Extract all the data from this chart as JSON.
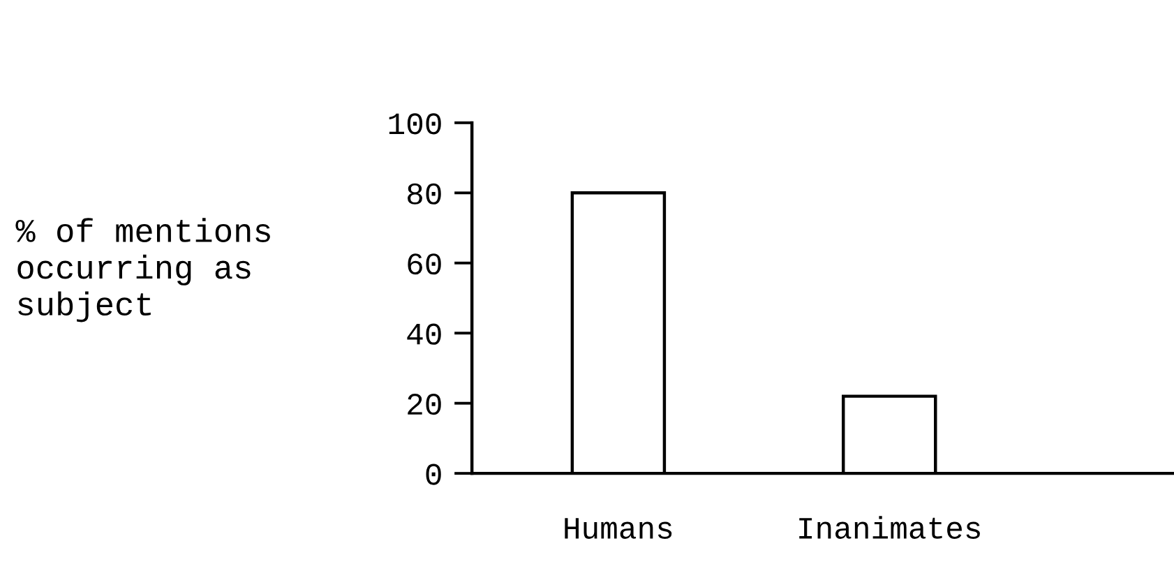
{
  "chart_data": {
    "type": "bar",
    "ylabel": "% of mentions\noccurring as\nsubject",
    "categories": [
      "Humans",
      "Inanimates"
    ],
    "values": [
      80,
      22
    ],
    "color": "#ffffff",
    "ylim": [
      0,
      100
    ],
    "yticks": [
      0,
      20,
      40,
      60,
      80,
      100
    ],
    "grid": false,
    "legend": false
  }
}
